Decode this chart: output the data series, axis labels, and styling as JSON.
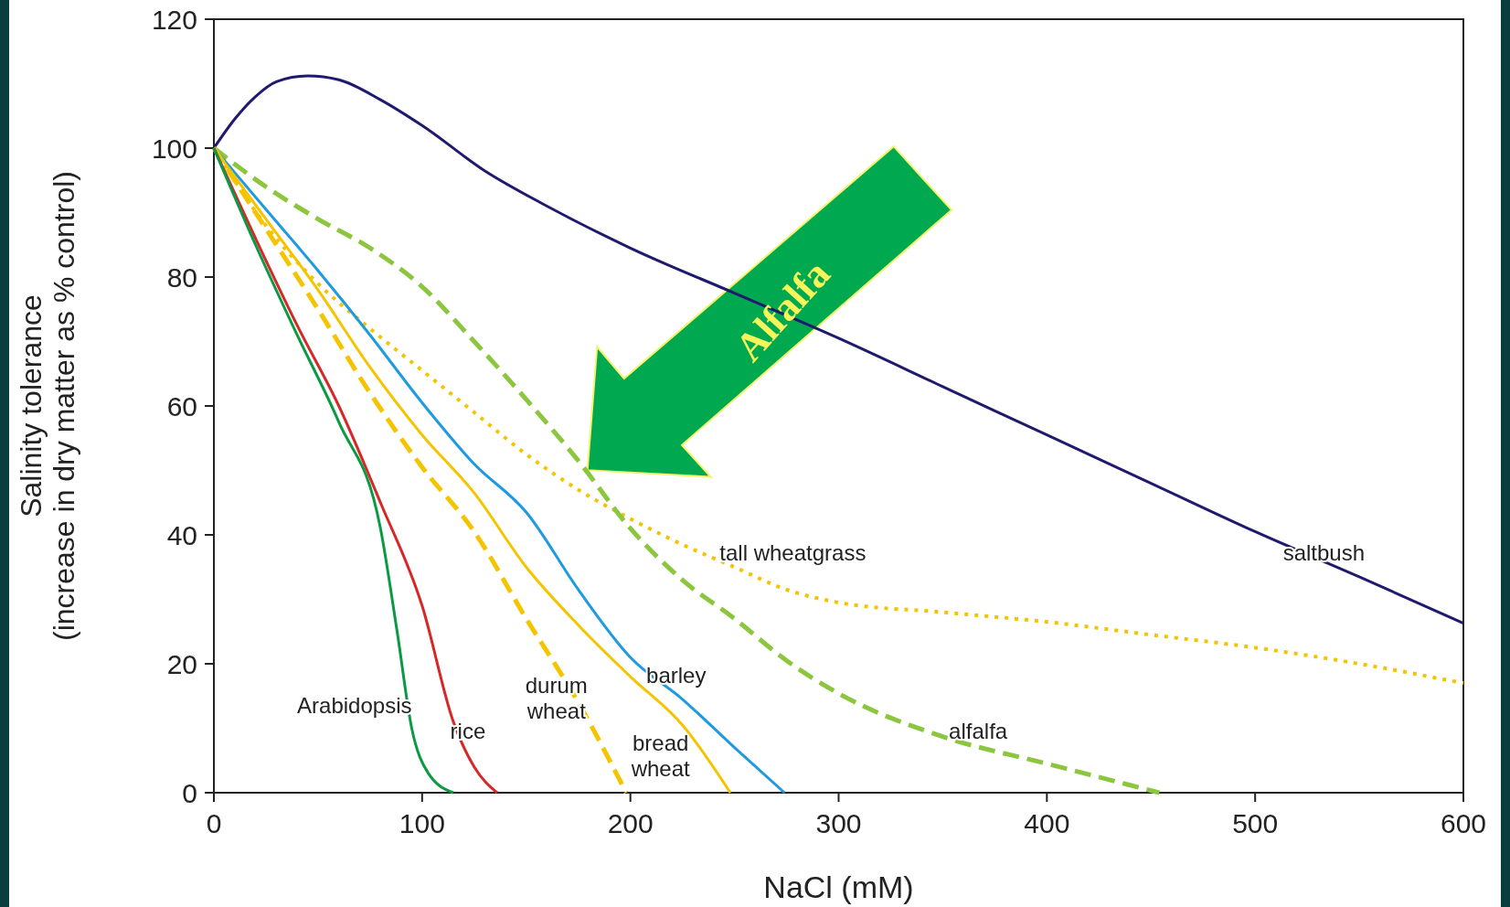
{
  "chart_data": {
    "type": "line",
    "xlabel": "NaCl (mM)",
    "ylabel": "Salinity tolerance\n(increase in dry matter as % control)",
    "xlim": [
      0,
      600
    ],
    "ylim": [
      0,
      120
    ],
    "xticks": [
      0,
      100,
      200,
      300,
      400,
      500,
      600
    ],
    "yticks": [
      0,
      20,
      40,
      60,
      80,
      100,
      120
    ],
    "annotations": [
      "Alfalfa"
    ],
    "series": [
      {
        "name": "saltbush",
        "color": "#1f1a6e",
        "line_style": "solid",
        "x": [
          0,
          10,
          20,
          30,
          45,
          60,
          80,
          100,
          130,
          160,
          200,
          250,
          300,
          350,
          400,
          450,
          500,
          550,
          600
        ],
        "values": [
          100,
          104.5,
          108,
          110.3,
          111.2,
          110.6,
          107.5,
          103.5,
          96.5,
          91,
          84.5,
          77.5,
          70.5,
          63,
          55.5,
          48,
          40.5,
          33.5,
          26.3
        ]
      },
      {
        "name": "tall wheatgrass",
        "color": "#f5c400",
        "line_style": "dotted",
        "x": [
          0,
          25,
          50,
          75,
          100,
          125,
          150,
          175,
          200,
          225,
          250,
          275,
          300,
          350,
          400,
          450,
          500,
          550,
          600
        ],
        "values": [
          100,
          88,
          79,
          72,
          65.5,
          59,
          52.5,
          47,
          42.5,
          38.5,
          35,
          31.5,
          29.5,
          28,
          26.5,
          24.5,
          22.5,
          20,
          17
        ]
      },
      {
        "name": "alfalfa",
        "color": "#8cc63f",
        "line_style": "dashed",
        "x": [
          0,
          25,
          50,
          75,
          100,
          125,
          150,
          175,
          200,
          225,
          250,
          275,
          300,
          350,
          400,
          454
        ],
        "values": [
          100,
          94,
          89,
          84.5,
          78.5,
          70,
          61,
          51.5,
          41,
          33,
          27,
          20.5,
          15.4,
          8.7,
          4.5,
          0
        ]
      },
      {
        "name": "barley",
        "color": "#1e9be0",
        "line_style": "solid",
        "x": [
          0,
          25,
          50,
          75,
          100,
          125,
          150,
          175,
          200,
          225,
          250,
          274
        ],
        "values": [
          100,
          90.5,
          81,
          71,
          60.5,
          51,
          43.5,
          31.5,
          21,
          14.5,
          7,
          0
        ]
      },
      {
        "name": "bread wheat",
        "color": "#f5c400",
        "line_style": "solid",
        "x": [
          0,
          25,
          50,
          75,
          100,
          125,
          150,
          175,
          200,
          225,
          248
        ],
        "values": [
          100,
          89,
          78,
          66,
          55.5,
          46.5,
          35,
          26,
          18,
          10.5,
          0
        ]
      },
      {
        "name": "durum wheat",
        "color": "#f5c400",
        "line_style": "dashed",
        "x": [
          0,
          25,
          50,
          75,
          100,
          125,
          150,
          175,
          198
        ],
        "values": [
          100,
          87.5,
          75,
          62,
          50.5,
          40.5,
          27,
          14,
          0
        ]
      },
      {
        "name": "rice",
        "color": "#d62828",
        "line_style": "solid",
        "x": [
          0,
          20,
          40,
          60,
          80,
          100,
          115,
          125,
          136
        ],
        "values": [
          100,
          86,
          72.5,
          60,
          45,
          29,
          11,
          4,
          0
        ]
      },
      {
        "name": "Arabidopsis",
        "color": "#0a9a44",
        "line_style": "solid",
        "x": [
          0,
          20,
          40,
          60,
          80,
          88,
          95,
          103,
          115
        ],
        "values": [
          100,
          85,
          71,
          57.5,
          41,
          25,
          10,
          3,
          0
        ]
      }
    ]
  }
}
